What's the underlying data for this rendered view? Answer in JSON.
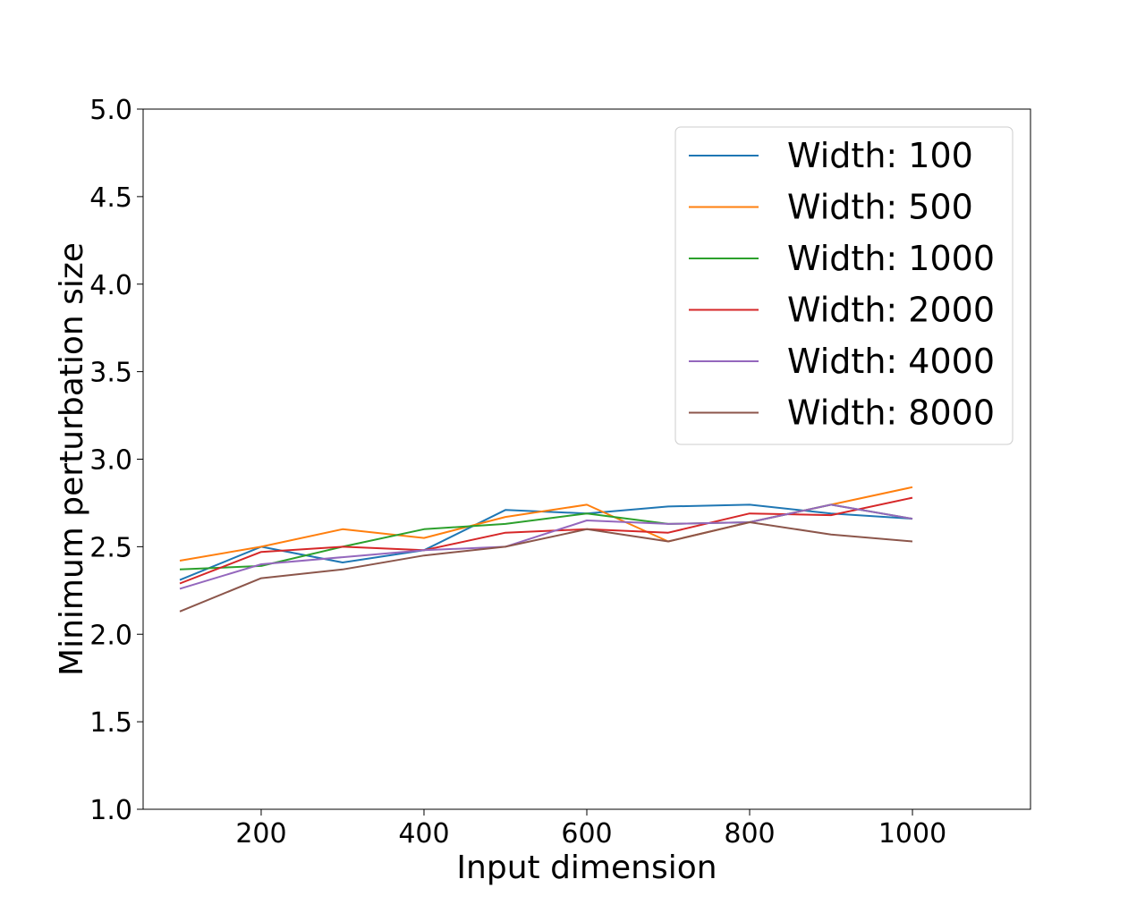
{
  "chart_data": {
    "type": "line",
    "title": "",
    "xlabel": "Input dimension",
    "ylabel": "Minimum perturbation size",
    "xlim": [
      55,
      1145
    ],
    "ylim": [
      1.0,
      5.0
    ],
    "x": [
      100,
      200,
      300,
      400,
      500,
      600,
      700,
      800,
      900,
      1000
    ],
    "xticks": [
      200,
      400,
      600,
      800,
      1000
    ],
    "xtick_labels": [
      "200",
      "400",
      "600",
      "800",
      "1000"
    ],
    "yticks": [
      1.0,
      1.5,
      2.0,
      2.5,
      3.0,
      3.5,
      4.0,
      4.5,
      5.0
    ],
    "ytick_labels": [
      "1.0",
      "1.5",
      "2.0",
      "2.5",
      "3.0",
      "3.5",
      "4.0",
      "4.5",
      "5.0"
    ],
    "grid": false,
    "legend_position": "top-right",
    "series": [
      {
        "name": "Width: 100",
        "color": "#1f77b4",
        "values": [
          2.31,
          2.5,
          2.41,
          2.48,
          2.71,
          2.69,
          2.73,
          2.74,
          2.69,
          2.66
        ]
      },
      {
        "name": "Width: 500",
        "color": "#ff7f0e",
        "values": [
          2.42,
          2.5,
          2.6,
          2.55,
          2.67,
          2.74,
          2.53,
          2.64,
          2.74,
          2.84
        ]
      },
      {
        "name": "Width: 1000",
        "color": "#2ca02c",
        "values": [
          2.37,
          2.39,
          2.5,
          2.6,
          2.63,
          2.69,
          2.63,
          2.64,
          2.74,
          2.66
        ]
      },
      {
        "name": "Width: 2000",
        "color": "#d62728",
        "values": [
          2.29,
          2.47,
          2.5,
          2.48,
          2.58,
          2.6,
          2.58,
          2.69,
          2.68,
          2.78
        ]
      },
      {
        "name": "Width: 4000",
        "color": "#9467bd",
        "values": [
          2.26,
          2.4,
          2.44,
          2.48,
          2.5,
          2.65,
          2.63,
          2.64,
          2.74,
          2.66
        ]
      },
      {
        "name": "Width: 8000",
        "color": "#8c564b",
        "values": [
          2.13,
          2.32,
          2.37,
          2.45,
          2.5,
          2.6,
          2.53,
          2.64,
          2.57,
          2.53
        ]
      }
    ]
  }
}
